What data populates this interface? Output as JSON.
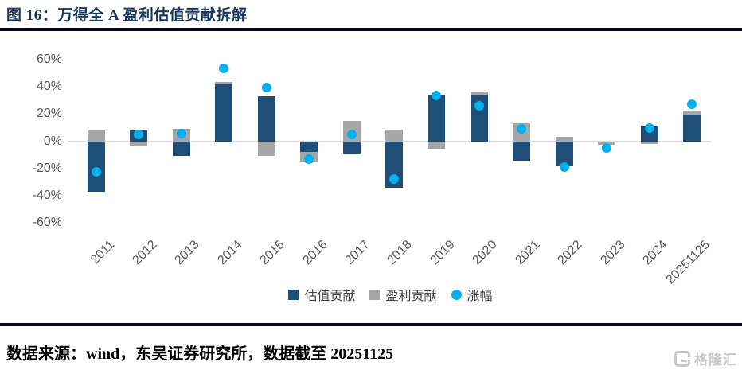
{
  "header": {
    "title": "图 16：万得全 A 盈利估值贡献拆解"
  },
  "footer": {
    "source": "数据来源：wind，东吴证券研究所，数据截至 20251125"
  },
  "watermark": {
    "icon": "gelonghui-g-logo",
    "text": "格隆汇"
  },
  "colors": {
    "valuation": "#1F4E79",
    "profit": "#A6A6A6",
    "change": "#00B0F0",
    "title": "#17375E",
    "axis_text": "#595959",
    "gridline": "#D9D9D9",
    "rule": "#07071A"
  },
  "chart_data": {
    "type": "bar",
    "subtype": "stacked-bars-with-scatter-overlay",
    "title": "图 16：万得全 A 盈利估值贡献拆解",
    "categories": [
      "2011",
      "2012",
      "2013",
      "2014",
      "2015",
      "2016",
      "2017",
      "2018",
      "2019",
      "2020",
      "2021",
      "2022",
      "2023",
      "2024",
      "20251125"
    ],
    "series": [
      {
        "name": "估值贡献",
        "key": "valuation",
        "kind": "bar",
        "values": [
          -37,
          8,
          -11,
          42,
          33,
          -8,
          -9,
          -34,
          34,
          34,
          -14.5,
          -17.5,
          -0.5,
          11.5,
          19.5
        ]
      },
      {
        "name": "盈利贡献",
        "key": "profit",
        "kind": "bar",
        "values": [
          8,
          -4,
          9,
          1.5,
          -11,
          -7,
          15,
          8.5,
          -5.5,
          2.5,
          13.5,
          3,
          -2,
          -2,
          3
        ]
      },
      {
        "name": "涨幅",
        "key": "change",
        "kind": "scatter",
        "values": [
          -22.5,
          5,
          5.5,
          53.5,
          39.5,
          -13,
          5,
          -28,
          33.5,
          26,
          9,
          -19,
          -5,
          10,
          27
        ]
      }
    ],
    "xlabel": "",
    "ylabel": "",
    "y_ticks": [
      "60%",
      "40%",
      "20%",
      "0%",
      "-20%",
      "-40%",
      "-60%"
    ],
    "y_tick_values": [
      60,
      40,
      20,
      0,
      -20,
      -40,
      -60
    ],
    "ylim": [
      -68,
      70
    ],
    "grid": "zero-line-only",
    "legend_position": "bottom"
  }
}
